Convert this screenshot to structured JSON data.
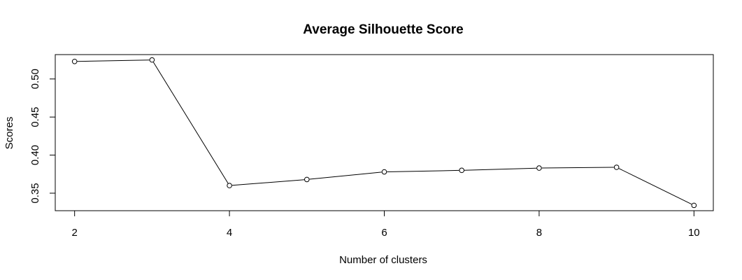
{
  "chart_data": {
    "type": "line",
    "title": "Average Silhouette Score",
    "xlabel": "Number of clusters",
    "ylabel": "Scores",
    "x": [
      2,
      3,
      4,
      5,
      6,
      7,
      8,
      9,
      10
    ],
    "y": [
      0.523,
      0.525,
      0.36,
      0.368,
      0.378,
      0.38,
      0.383,
      0.384,
      0.334
    ],
    "xticks": [
      "2",
      "4",
      "6",
      "8",
      "10"
    ],
    "yticks": [
      "0.35",
      "0.40",
      "0.45",
      "0.50"
    ],
    "xlim": [
      1.75,
      10.25
    ],
    "ylim": [
      0.327,
      0.532
    ],
    "grid": false,
    "marker": "open-circle",
    "line_color": "#000000"
  }
}
